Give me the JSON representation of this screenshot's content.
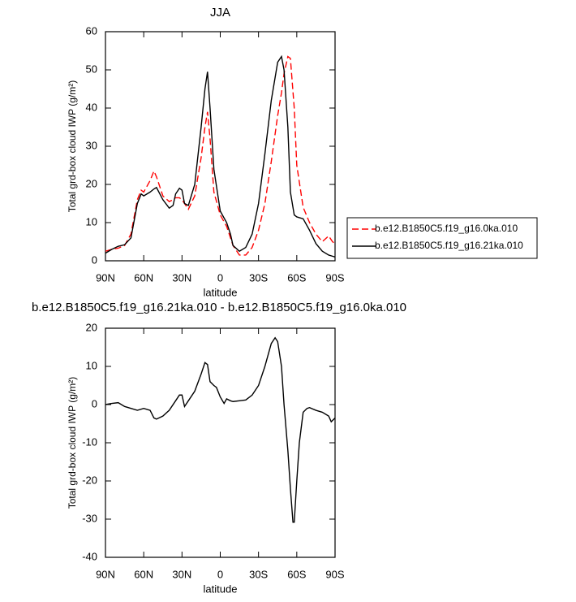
{
  "chart_data": [
    {
      "type": "line",
      "title": "JJA",
      "xlabel": "latitude",
      "ylabel": "Total grd-box cloud IWP (g/m²)",
      "x": [
        90,
        85,
        80,
        75,
        70,
        65,
        62,
        60,
        55,
        52,
        50,
        45,
        40,
        37,
        35,
        32,
        30,
        28,
        25,
        20,
        15,
        12,
        10,
        8,
        5,
        0,
        -5,
        -8,
        -10,
        -15,
        -20,
        -25,
        -30,
        -35,
        -40,
        -45,
        -48,
        -50,
        -53,
        -55,
        -58,
        -60,
        -65,
        -70,
        -75,
        -80,
        -85,
        -88,
        -90
      ],
      "series": [
        {
          "name": "b.e12.B1850C5.f19_g16.0ka.010",
          "color": "#ff0000",
          "dashed": true,
          "values": [
            2.5,
            3,
            3.3,
            4,
            7,
            16,
            18.5,
            18,
            21,
            23.5,
            22,
            17,
            15.5,
            16,
            16.5,
            16.5,
            16,
            15,
            13.5,
            17,
            27,
            35,
            39,
            32,
            18,
            12,
            9,
            6,
            4,
            1.5,
            1.5,
            3.5,
            8,
            15,
            26,
            38,
            44,
            49,
            53.5,
            53,
            40,
            25,
            14,
            10,
            7,
            5,
            6.5,
            5,
            4.5
          ]
        },
        {
          "name": "b.e12.B1850C5.f19_g16.21ka.010",
          "color": "#000000",
          "dashed": false,
          "values": [
            2,
            3,
            3.8,
            4.2,
            6,
            15,
            17.5,
            17,
            18,
            18.8,
            19.2,
            16,
            13.8,
            14.5,
            17.5,
            19,
            18.5,
            15,
            14.5,
            20,
            35,
            45,
            49.5,
            40,
            24,
            13,
            10,
            7,
            4,
            2.5,
            3.5,
            7,
            15,
            28,
            42,
            52,
            53.5,
            50,
            35,
            18,
            12,
            11.5,
            11,
            8,
            4.5,
            2.5,
            1.5,
            1.2,
            1
          ]
        }
      ],
      "xlim": [
        90,
        -90
      ],
      "xticks": [
        {
          "value": 90,
          "label": "90N"
        },
        {
          "value": 60,
          "label": "60N"
        },
        {
          "value": 30,
          "label": "30N"
        },
        0,
        {
          "value": -30,
          "label": "30S"
        },
        {
          "value": -60,
          "label": "60S"
        },
        {
          "value": -90,
          "label": "90S"
        }
      ],
      "ylim": [
        0,
        60
      ],
      "yticks": [
        0,
        10,
        20,
        30,
        40,
        50,
        60
      ],
      "legend": "right"
    },
    {
      "type": "line",
      "title": "b.e12.B1850C5.f19_g16.21ka.010 - b.e12.B1850C5.f19_g16.0ka.010",
      "xlabel": "latitude",
      "ylabel": "Total grd-box cloud IWP (g/m²)",
      "x": [
        90,
        85,
        80,
        75,
        70,
        65,
        60,
        55,
        52,
        50,
        45,
        40,
        35,
        32,
        30,
        28,
        25,
        20,
        15,
        12,
        10,
        8,
        5,
        3,
        0,
        -3,
        -5,
        -8,
        -10,
        -15,
        -20,
        -25,
        -30,
        -35,
        -40,
        -43,
        -45,
        -48,
        -50,
        -53,
        -55,
        -57,
        -58,
        -60,
        -62,
        -65,
        -68,
        -70,
        -75,
        -80,
        -85,
        -87,
        -90
      ],
      "series": [
        {
          "color": "#000000",
          "dashed": false,
          "values": [
            0,
            0.3,
            0.5,
            -0.5,
            -1,
            -1.5,
            -1,
            -1.5,
            -3.5,
            -3.8,
            -3,
            -1.5,
            1,
            2.5,
            2.5,
            -0.5,
            1,
            3.5,
            8,
            11,
            10.5,
            6,
            5,
            4.5,
            2,
            0.3,
            1.5,
            1,
            0.8,
            1,
            1.2,
            2.5,
            5,
            10,
            16,
            17.5,
            16.5,
            10,
            0,
            -12,
            -22,
            -30.8,
            -30.8,
            -20,
            -10,
            -2,
            -1,
            -0.8,
            -1.5,
            -2,
            -3,
            -4.5,
            -3.5
          ]
        }
      ],
      "xlim": [
        90,
        -90
      ],
      "xticks": [
        {
          "value": 90,
          "label": "90N"
        },
        {
          "value": 60,
          "label": "60N"
        },
        {
          "value": 30,
          "label": "30N"
        },
        0,
        {
          "value": -30,
          "label": "30S"
        },
        {
          "value": -60,
          "label": "60S"
        },
        {
          "value": -90,
          "label": "90S"
        }
      ],
      "ylim": [
        -40,
        20
      ],
      "yticks": [
        -40,
        -30,
        -20,
        -10,
        0,
        10,
        20
      ]
    }
  ]
}
